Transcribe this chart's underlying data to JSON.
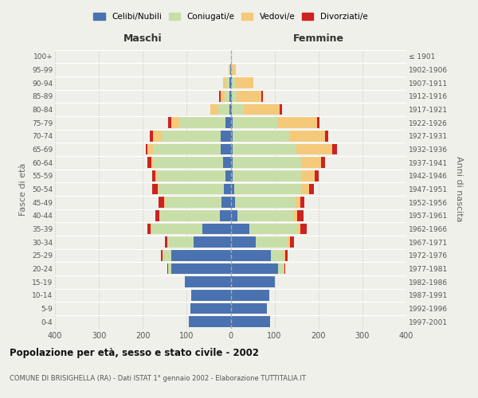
{
  "age_groups": [
    "0-4",
    "5-9",
    "10-14",
    "15-19",
    "20-24",
    "25-29",
    "30-34",
    "35-39",
    "40-44",
    "45-49",
    "50-54",
    "55-59",
    "60-64",
    "65-69",
    "70-74",
    "75-79",
    "80-84",
    "85-89",
    "90-94",
    "95-99",
    "100+"
  ],
  "birth_years": [
    "1997-2001",
    "1992-1996",
    "1987-1991",
    "1982-1986",
    "1977-1981",
    "1972-1976",
    "1967-1971",
    "1962-1966",
    "1957-1961",
    "1952-1956",
    "1947-1951",
    "1942-1946",
    "1937-1941",
    "1932-1936",
    "1927-1931",
    "1922-1926",
    "1917-1921",
    "1912-1916",
    "1907-1911",
    "1902-1906",
    "≤ 1901"
  ],
  "colors": {
    "celibi": "#4a72b0",
    "coniugati": "#c8dea8",
    "vedovi": "#f5c97a",
    "divorziati": "#cc2222"
  },
  "maschi": {
    "celibi": [
      95,
      92,
      90,
      105,
      135,
      135,
      85,
      65,
      25,
      20,
      16,
      12,
      18,
      22,
      22,
      12,
      3,
      2,
      2,
      1,
      0
    ],
    "coniugati": [
      0,
      0,
      0,
      0,
      8,
      18,
      58,
      115,
      135,
      130,
      148,
      155,
      158,
      155,
      135,
      105,
      25,
      12,
      8,
      2,
      0
    ],
    "vedovi": [
      0,
      0,
      0,
      0,
      0,
      2,
      2,
      2,
      2,
      2,
      2,
      4,
      5,
      12,
      20,
      18,
      18,
      8,
      8,
      2,
      0
    ],
    "divorziati": [
      0,
      0,
      0,
      0,
      2,
      3,
      5,
      8,
      10,
      12,
      12,
      8,
      8,
      5,
      8,
      8,
      0,
      5,
      0,
      0,
      0
    ]
  },
  "femmine": {
    "celibi": [
      90,
      82,
      88,
      100,
      108,
      92,
      58,
      42,
      15,
      10,
      8,
      5,
      5,
      5,
      5,
      5,
      2,
      2,
      2,
      1,
      0
    ],
    "coniugati": [
      0,
      0,
      0,
      0,
      12,
      28,
      72,
      112,
      128,
      138,
      153,
      158,
      155,
      145,
      130,
      102,
      28,
      12,
      8,
      2,
      0
    ],
    "vedovi": [
      0,
      0,
      0,
      0,
      2,
      5,
      5,
      5,
      8,
      10,
      18,
      28,
      45,
      82,
      80,
      90,
      82,
      55,
      42,
      8,
      2
    ],
    "divorziati": [
      0,
      0,
      0,
      0,
      2,
      5,
      10,
      15,
      15,
      10,
      10,
      10,
      10,
      10,
      8,
      5,
      5,
      5,
      0,
      0,
      0
    ]
  },
  "title": "Popolazione per età, sesso e stato civile - 2002",
  "subtitle": "COMUNE DI BRISIGHELLA (RA) - Dati ISTAT 1° gennaio 2002 - Elaborazione TUTTITALIA.IT",
  "label_maschi": "Maschi",
  "label_femmine": "Femmine",
  "ylabel_left": "Fasce di età",
  "ylabel_right": "Anni di nascita",
  "xlim": 400,
  "xticks": [
    -400,
    -300,
    -200,
    -100,
    0,
    100,
    200,
    300,
    400
  ],
  "xtick_labels": [
    "400",
    "300",
    "200",
    "100",
    "0",
    "100",
    "200",
    "300",
    "400"
  ],
  "legend_labels": [
    "Celibi/Nubili",
    "Coniugati/e",
    "Vedovi/e",
    "Divorziati/e"
  ],
  "bg_color": "#f0f0ea",
  "grid_color": "#cccccc",
  "bar_height": 0.82
}
